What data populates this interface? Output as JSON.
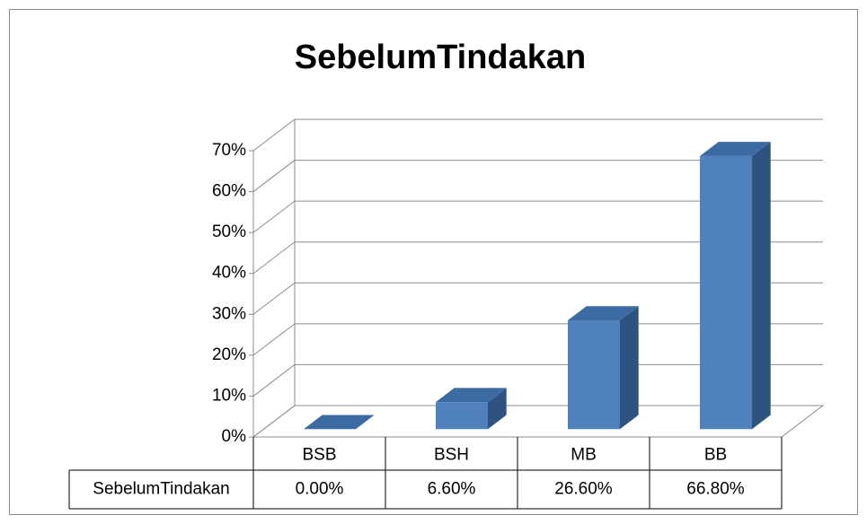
{
  "chart_data": {
    "type": "bar3d",
    "title": "SebelumTindakan",
    "categories": [
      "BSB",
      "BSH",
      "MB",
      "BB"
    ],
    "series": [
      {
        "name": "SebelumTindakan",
        "color": "#4f81bd",
        "values": [
          0,
          6.6,
          26.6,
          66.8
        ],
        "value_labels": [
          "0.00%",
          "6.60%",
          "26.60%",
          "66.80%"
        ]
      }
    ],
    "ylim": [
      0,
      70
    ],
    "yticks": [
      {
        "value": 0,
        "label": "0%"
      },
      {
        "value": 10,
        "label": "10%"
      },
      {
        "value": 20,
        "label": "20%"
      },
      {
        "value": 30,
        "label": "30%"
      },
      {
        "value": 40,
        "label": "40%"
      },
      {
        "value": 50,
        "label": "50%"
      },
      {
        "value": 60,
        "label": "60%"
      },
      {
        "value": 70,
        "label": "70%"
      }
    ],
    "grid": true
  }
}
